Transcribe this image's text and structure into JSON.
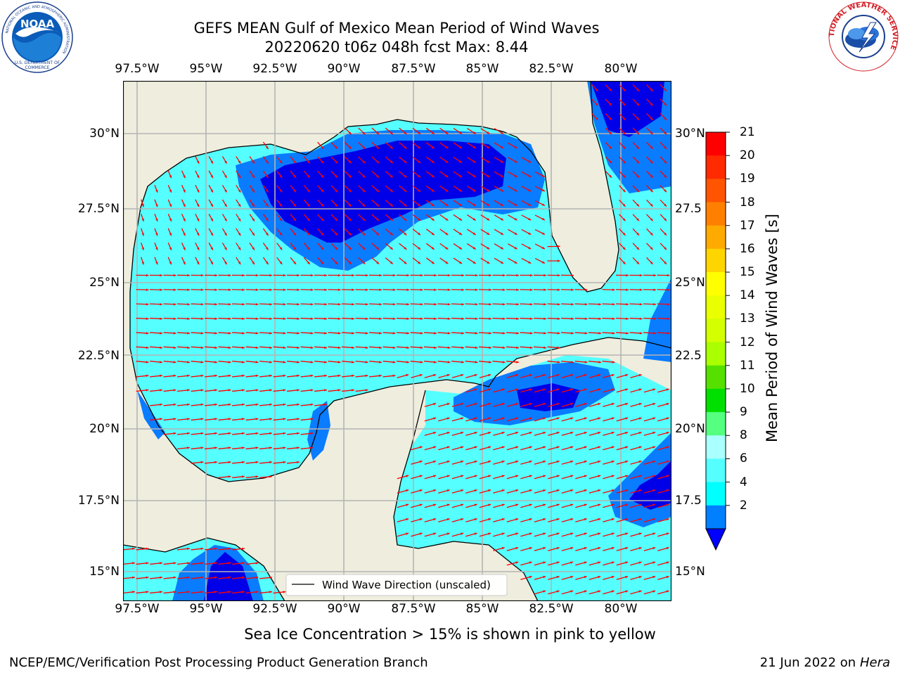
{
  "header": {
    "title_line1": "GEFS MEAN Gulf of Mexico Mean Period of Wind Waves",
    "title_line2": "20220620 t06z 048h fcst   Max: 8.44"
  },
  "logos": {
    "left_text": "NOAA",
    "left_ring_text": "NATIONAL OCEANIC AND ATMOSPHERIC ADMINISTRATION",
    "left_ring_text_bottom": "U.S. DEPARTMENT OF COMMERCE",
    "right_ring_text": "NATIONAL WEATHER SERVICE"
  },
  "map": {
    "lon_labels": [
      "97.5°W",
      "95°W",
      "92.5°W",
      "90°W",
      "87.5°W",
      "85°W",
      "82.5°W",
      "80°W"
    ],
    "lat_labels_left": [
      "30°N",
      "27.5°N",
      "25°N",
      "22.5°N",
      "20°N",
      "17.5°N",
      "15°N"
    ],
    "lat_labels_right": [
      "30°N",
      "27.5",
      "25°N",
      "22.5",
      "20°N",
      "17.5",
      "15°N"
    ],
    "legend_label": "Wind Wave Direction (unscaled)",
    "colors": {
      "land": "#efedde",
      "ocean_shallow": "#55ffff",
      "ocean_mid": "#00ffff",
      "ocean_deep": "#0a7cff",
      "ocean_darkest": "#0000e8",
      "arrow": "#ff0000",
      "coast": "#000000",
      "grid": "#b4b4b4"
    }
  },
  "colorbar": {
    "title": "Mean Period of Wind Waves [s]",
    "ticks": [
      "21",
      "20",
      "19",
      "18",
      "17",
      "16",
      "15",
      "14",
      "13",
      "12",
      "11",
      "10",
      "9",
      "8",
      "6",
      "4",
      "2"
    ],
    "colors": [
      "#ff0000",
      "#ff2a00",
      "#ff5500",
      "#ff8000",
      "#ffaa00",
      "#ffd500",
      "#ffff00",
      "#eaff00",
      "#d4ff00",
      "#aaff00",
      "#55e000",
      "#00e000",
      "#55ff80",
      "#aaffff",
      "#55ffff",
      "#00ffff",
      "#0080ff"
    ],
    "extend_color": "#0000ff"
  },
  "footer": {
    "note": "Sea Ice Concentration > 15% is shown in pink to yellow",
    "left": "NCEP/EMC/Verification Post Processing Product Generation Branch",
    "right_date": "21 Jun 2022 on",
    "right_host": "Hera"
  }
}
